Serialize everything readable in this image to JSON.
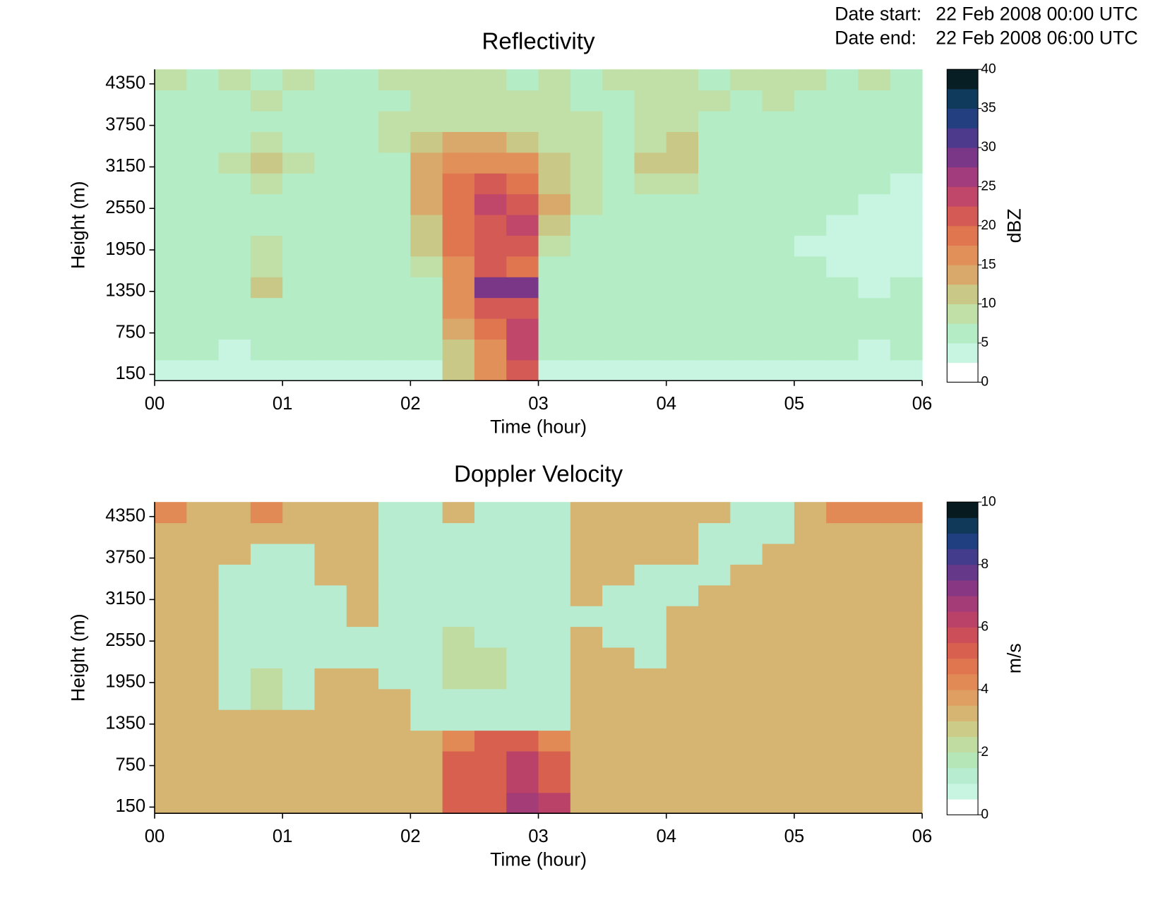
{
  "annotations": [
    {
      "label": "Date start:",
      "value": "22 Feb 2008 00:00 UTC"
    },
    {
      "label": "Date end:",
      "value": "22 Feb 2008 06:00 UTC"
    }
  ],
  "chart_data": [
    {
      "type": "heatmap",
      "title": "Reflectivity",
      "xlabel": "Time (hour)",
      "ylabel": "Height (m)",
      "colorbar_label": "dBZ",
      "xlim": [
        0,
        6
      ],
      "xticks": [
        {
          "value": 0,
          "label": "00"
        },
        {
          "value": 1,
          "label": "01"
        },
        {
          "value": 2,
          "label": "02"
        },
        {
          "value": 3,
          "label": "03"
        },
        {
          "value": 4,
          "label": "04"
        },
        {
          "value": 5,
          "label": "05"
        },
        {
          "value": 6,
          "label": "06"
        }
      ],
      "ylim": [
        60,
        4560
      ],
      "yticks": [
        150,
        750,
        1350,
        1950,
        2550,
        3150,
        3750,
        4350
      ],
      "zlim": [
        0,
        40
      ],
      "zticks": [
        0,
        5,
        10,
        15,
        20,
        25,
        30,
        35,
        40
      ],
      "colors": [
        "#ffffff",
        "#c8f5e1",
        "#b4ecc6",
        "#c0e0a8",
        "#c9c887",
        "#d8a96a",
        "#e2905a",
        "#df7650",
        "#d45a55",
        "#c0466a",
        "#a23c7c",
        "#7a3787",
        "#4e3a8c",
        "#233f80",
        "#0f3a5c",
        "#071e24"
      ],
      "xbins": [
        0,
        0.25,
        0.5,
        0.75,
        1,
        1.25,
        1.5,
        1.75,
        2,
        2.25,
        2.5,
        2.75,
        3,
        3.25,
        3.5,
        3.75,
        4,
        4.25,
        4.5,
        4.75,
        5,
        5.25,
        5.5,
        5.75,
        6
      ],
      "ybins": [
        60,
        360,
        660,
        960,
        1260,
        1560,
        1860,
        2160,
        2460,
        2760,
        3060,
        3360,
        3660,
        3960,
        4260,
        4560
      ],
      "z": [
        [
          4,
          3,
          4,
          4,
          4,
          4,
          4,
          4,
          4,
          12,
          16,
          22,
          4,
          4,
          4,
          4,
          4,
          4,
          4,
          4,
          4,
          4,
          3,
          4
        ],
        [
          5,
          5,
          4,
          5,
          5,
          5,
          5,
          5,
          5,
          12,
          17,
          24,
          5,
          5,
          5,
          5,
          5,
          5,
          5,
          5,
          5,
          5,
          4,
          5
        ],
        [
          5,
          5,
          5,
          5,
          5,
          5,
          5,
          5,
          5,
          14,
          18,
          23,
          5,
          5,
          5,
          5,
          5,
          5,
          5,
          5,
          5,
          5,
          5,
          5
        ],
        [
          5,
          5,
          5,
          7,
          5,
          5,
          5,
          5,
          6,
          15,
          20,
          22,
          5,
          5,
          5,
          5,
          5,
          5,
          5,
          5,
          5,
          5,
          5,
          5
        ],
        [
          5,
          6,
          5,
          10,
          5,
          5,
          5,
          5,
          6,
          16,
          29,
          28,
          6,
          5,
          5,
          5,
          5,
          5,
          5,
          5,
          5,
          5,
          4,
          5
        ],
        [
          5,
          5,
          5,
          8,
          5,
          5,
          5,
          5,
          8,
          17,
          20,
          19,
          6,
          5,
          5,
          5,
          5,
          5,
          5,
          5,
          5,
          4,
          4,
          4
        ],
        [
          5,
          5,
          5,
          8,
          6,
          5,
          5,
          5,
          10,
          18,
          21,
          21,
          9,
          6,
          5,
          5,
          5,
          5,
          5,
          5,
          4,
          4,
          4,
          4
        ],
        [
          5,
          5,
          6,
          7,
          6,
          5,
          5,
          6,
          12,
          19,
          22,
          23,
          11,
          6,
          5,
          5,
          5,
          5,
          5,
          5,
          5,
          4,
          4,
          4
        ],
        [
          5,
          5,
          7,
          7,
          6,
          5,
          6,
          6,
          13,
          19,
          23,
          22,
          13,
          8,
          6,
          6,
          6,
          5,
          5,
          5,
          5,
          5,
          4,
          4
        ],
        [
          5,
          5,
          7,
          9,
          7,
          6,
          6,
          6,
          14,
          18,
          20,
          18,
          12,
          9,
          7,
          8,
          8,
          6,
          5,
          5,
          5,
          5,
          5,
          4
        ],
        [
          5,
          5,
          8,
          10,
          9,
          6,
          6,
          7,
          14,
          16,
          17,
          15,
          11,
          9,
          7,
          10,
          11,
          7,
          6,
          5,
          5,
          5,
          5,
          5
        ],
        [
          5,
          6,
          7,
          8,
          7,
          6,
          6,
          8,
          12,
          13,
          13,
          12,
          9,
          8,
          7,
          9,
          10,
          7,
          6,
          6,
          5,
          6,
          5,
          5
        ],
        [
          6,
          6,
          7,
          7,
          6,
          6,
          6,
          8,
          9,
          9,
          9,
          8,
          8,
          8,
          7,
          8,
          8,
          7,
          7,
          6,
          6,
          6,
          6,
          5
        ],
        [
          7,
          6,
          7,
          8,
          7,
          6,
          7,
          7,
          8,
          9,
          8,
          9,
          8,
          7,
          7,
          8,
          9,
          8,
          7,
          8,
          7,
          6,
          7,
          6
        ],
        [
          8,
          7,
          8,
          7,
          8,
          7,
          6,
          8,
          8,
          9,
          8,
          7,
          8,
          7,
          8,
          9,
          8,
          7,
          8,
          9,
          8,
          7,
          8,
          7
        ]
      ]
    },
    {
      "type": "heatmap",
      "title": "Doppler Velocity",
      "xlabel": "Time (hour)",
      "ylabel": "Height (m)",
      "colorbar_label": "m/s",
      "xlim": [
        0,
        6
      ],
      "xticks": [
        {
          "value": 0,
          "label": "00"
        },
        {
          "value": 1,
          "label": "01"
        },
        {
          "value": 2,
          "label": "02"
        },
        {
          "value": 3,
          "label": "03"
        },
        {
          "value": 4,
          "label": "04"
        },
        {
          "value": 5,
          "label": "05"
        },
        {
          "value": 6,
          "label": "06"
        }
      ],
      "ylim": [
        60,
        4560
      ],
      "yticks": [
        150,
        750,
        1350,
        1950,
        2550,
        3150,
        3750,
        4350
      ],
      "zlim": [
        0,
        10
      ],
      "zticks": [
        0,
        2,
        4,
        6,
        8,
        10
      ],
      "colors": [
        "#ffffff",
        "#c8f5e1",
        "#b8ecd0",
        "#b4e6b8",
        "#c0dca0",
        "#cccb88",
        "#d6b472",
        "#df9e62",
        "#e28a55",
        "#e07650",
        "#d8604f",
        "#cc4e58",
        "#ba4268",
        "#a43c78",
        "#883883",
        "#653889",
        "#433c8c",
        "#203f80",
        "#103858",
        "#061a20"
      ],
      "xbins": [
        0,
        0.25,
        0.5,
        0.75,
        1,
        1.25,
        1.5,
        1.75,
        2,
        2.25,
        2.5,
        2.75,
        3,
        3.25,
        3.5,
        3.75,
        4,
        4.25,
        4.5,
        4.75,
        5,
        5.25,
        5.5,
        5.75,
        6
      ],
      "ybins": [
        60,
        360,
        660,
        960,
        1260,
        1560,
        1860,
        2160,
        2460,
        2760,
        3060,
        3360,
        3660,
        3960,
        4260,
        4560
      ],
      "z": [
        [
          3,
          3,
          3,
          3,
          3,
          3,
          3,
          3,
          3,
          5,
          5,
          6.5,
          6,
          3,
          3,
          3,
          3,
          3,
          3,
          3,
          3,
          3,
          3,
          3
        ],
        [
          3,
          3,
          3,
          3,
          3,
          3,
          3,
          3,
          3,
          5,
          5,
          6,
          5,
          3,
          3,
          3,
          3,
          3,
          3,
          3,
          3,
          3,
          3,
          3
        ],
        [
          3,
          3,
          3,
          3,
          3,
          3,
          3,
          3,
          3,
          5,
          5,
          6,
          5,
          3,
          3,
          3,
          3,
          3,
          3,
          3,
          3,
          3,
          3,
          3
        ],
        [
          3,
          3,
          3,
          3,
          3,
          3,
          3,
          3,
          3,
          4,
          5,
          5,
          4,
          3,
          3,
          3,
          3,
          3,
          3,
          3,
          3,
          3,
          3,
          3
        ],
        [
          3,
          3,
          3,
          3,
          3,
          3,
          3,
          3,
          1,
          1,
          1,
          1,
          1,
          3,
          3,
          3,
          3,
          3,
          3,
          3,
          3,
          3,
          3,
          3
        ],
        [
          3,
          3,
          1,
          2,
          1,
          3,
          3,
          3,
          1,
          1,
          1,
          1,
          1,
          3,
          3,
          3,
          3,
          3,
          3,
          3,
          3,
          3,
          3,
          3
        ],
        [
          3,
          3,
          1,
          2,
          1,
          3,
          3,
          1,
          1,
          2,
          2,
          1,
          1,
          3,
          3,
          3,
          3,
          3,
          3,
          3,
          3,
          3,
          3,
          3
        ],
        [
          3,
          3,
          1,
          1,
          1,
          1,
          1,
          1,
          1,
          2,
          2,
          1,
          1,
          3,
          3,
          1,
          3,
          3,
          3,
          3,
          3,
          3,
          3,
          3
        ],
        [
          3,
          3,
          1,
          1,
          1,
          1,
          1,
          1,
          1,
          2,
          1,
          1,
          1,
          3,
          1,
          1,
          3,
          3,
          3,
          3,
          3,
          3,
          3,
          3
        ],
        [
          3,
          3,
          1,
          1,
          1,
          1,
          3,
          1,
          1,
          1,
          1,
          1,
          1,
          1,
          1,
          1,
          3,
          3,
          3,
          3,
          3,
          3,
          3,
          3
        ],
        [
          3,
          3,
          1,
          1,
          1,
          1,
          3,
          1,
          1,
          1,
          1,
          1,
          1,
          3,
          1,
          1,
          1,
          3,
          3,
          3,
          3,
          3,
          3,
          3
        ],
        [
          3,
          3,
          1,
          1,
          1,
          3,
          3,
          1,
          1,
          1,
          1,
          1,
          1,
          3,
          3,
          1,
          1,
          1,
          3,
          3,
          3,
          3,
          3,
          3
        ],
        [
          3,
          3,
          3,
          1,
          1,
          3,
          3,
          1,
          1,
          1,
          1,
          1,
          1,
          3,
          3,
          3,
          3,
          1,
          1,
          3,
          3,
          3,
          3,
          3
        ],
        [
          3,
          3,
          3,
          3,
          3,
          3,
          3,
          1,
          1,
          1,
          1,
          1,
          1,
          3,
          3,
          3,
          3,
          1,
          1,
          1,
          3,
          3,
          3,
          3
        ],
        [
          4,
          3,
          3,
          4,
          3,
          3,
          3,
          1,
          1,
          3,
          1,
          1,
          1,
          3,
          3,
          3,
          3,
          3,
          1,
          1,
          3,
          4,
          4,
          4
        ]
      ]
    }
  ]
}
